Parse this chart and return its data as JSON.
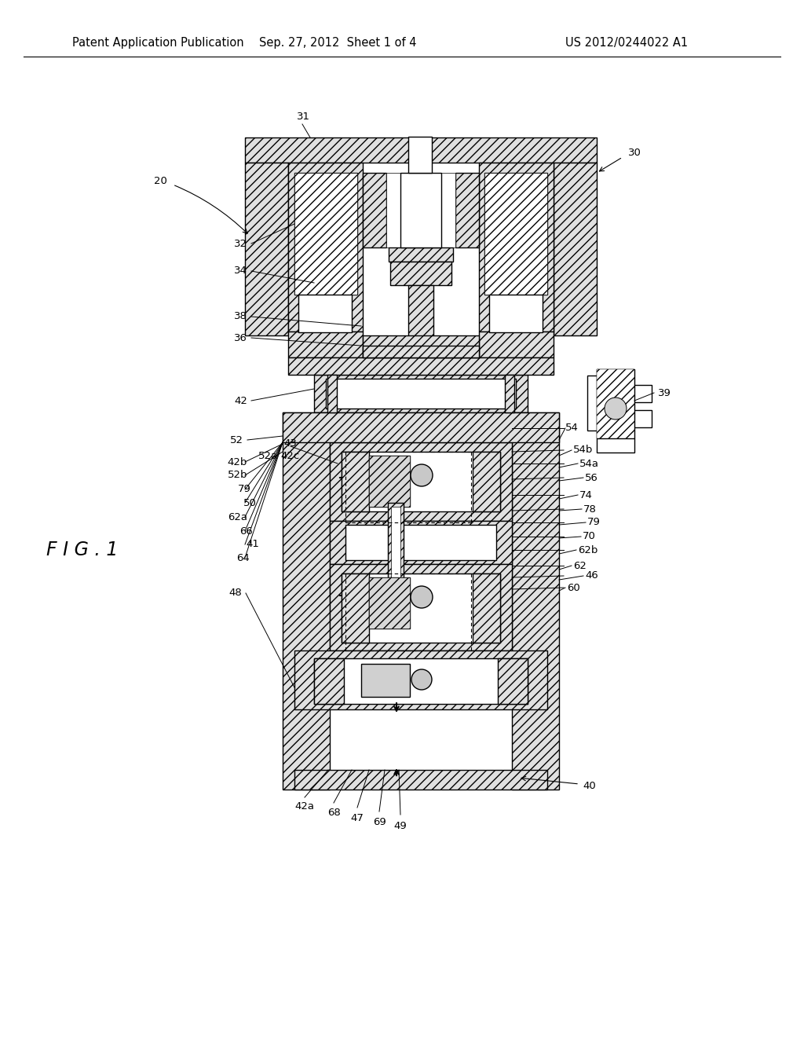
{
  "background_color": "#ffffff",
  "header_left": "Patent Application Publication",
  "header_mid": "Sep. 27, 2012  Sheet 1 of 4",
  "header_right": "US 2012/0244022 A1",
  "fig_label": "F I G . 1",
  "header_fontsize": 10.5,
  "label_fontsize": 9.5,
  "fig_label_fontsize": 17,
  "hatch_color": "#000000",
  "line_color": "#000000",
  "hatch_lw": 0.5,
  "diagram_lw": 1.0
}
